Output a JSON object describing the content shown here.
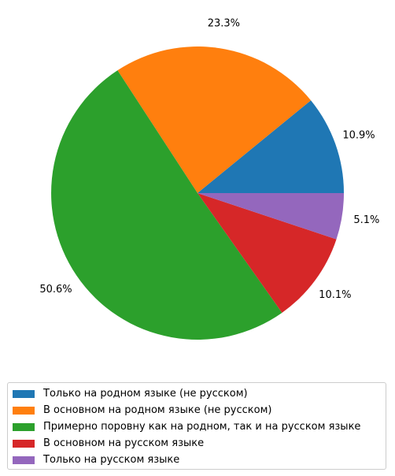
{
  "chart_data": {
    "type": "pie",
    "title": "",
    "slices": [
      {
        "label": "Только на родном языке (не русском)",
        "value": 10.9,
        "value_label": "10.9%",
        "color": "#1f77b4"
      },
      {
        "label": "В основном на родном языке (не русском)",
        "value": 23.3,
        "value_label": "23.3%",
        "color": "#ff7f0e"
      },
      {
        "label": "Примерно поровну как на родном, так и на русском языке",
        "value": 50.6,
        "value_label": "50.6%",
        "color": "#2ca02c"
      },
      {
        "label": "В основном на русском языке",
        "value": 10.1,
        "value_label": "10.1%",
        "color": "#d62728"
      },
      {
        "label": "Только на русском языке",
        "value": 5.1,
        "value_label": "5.1%",
        "color": "#9467bd"
      }
    ],
    "start_angle_deg": 0,
    "direction": "counterclockwise",
    "legend_position": "bottom"
  }
}
